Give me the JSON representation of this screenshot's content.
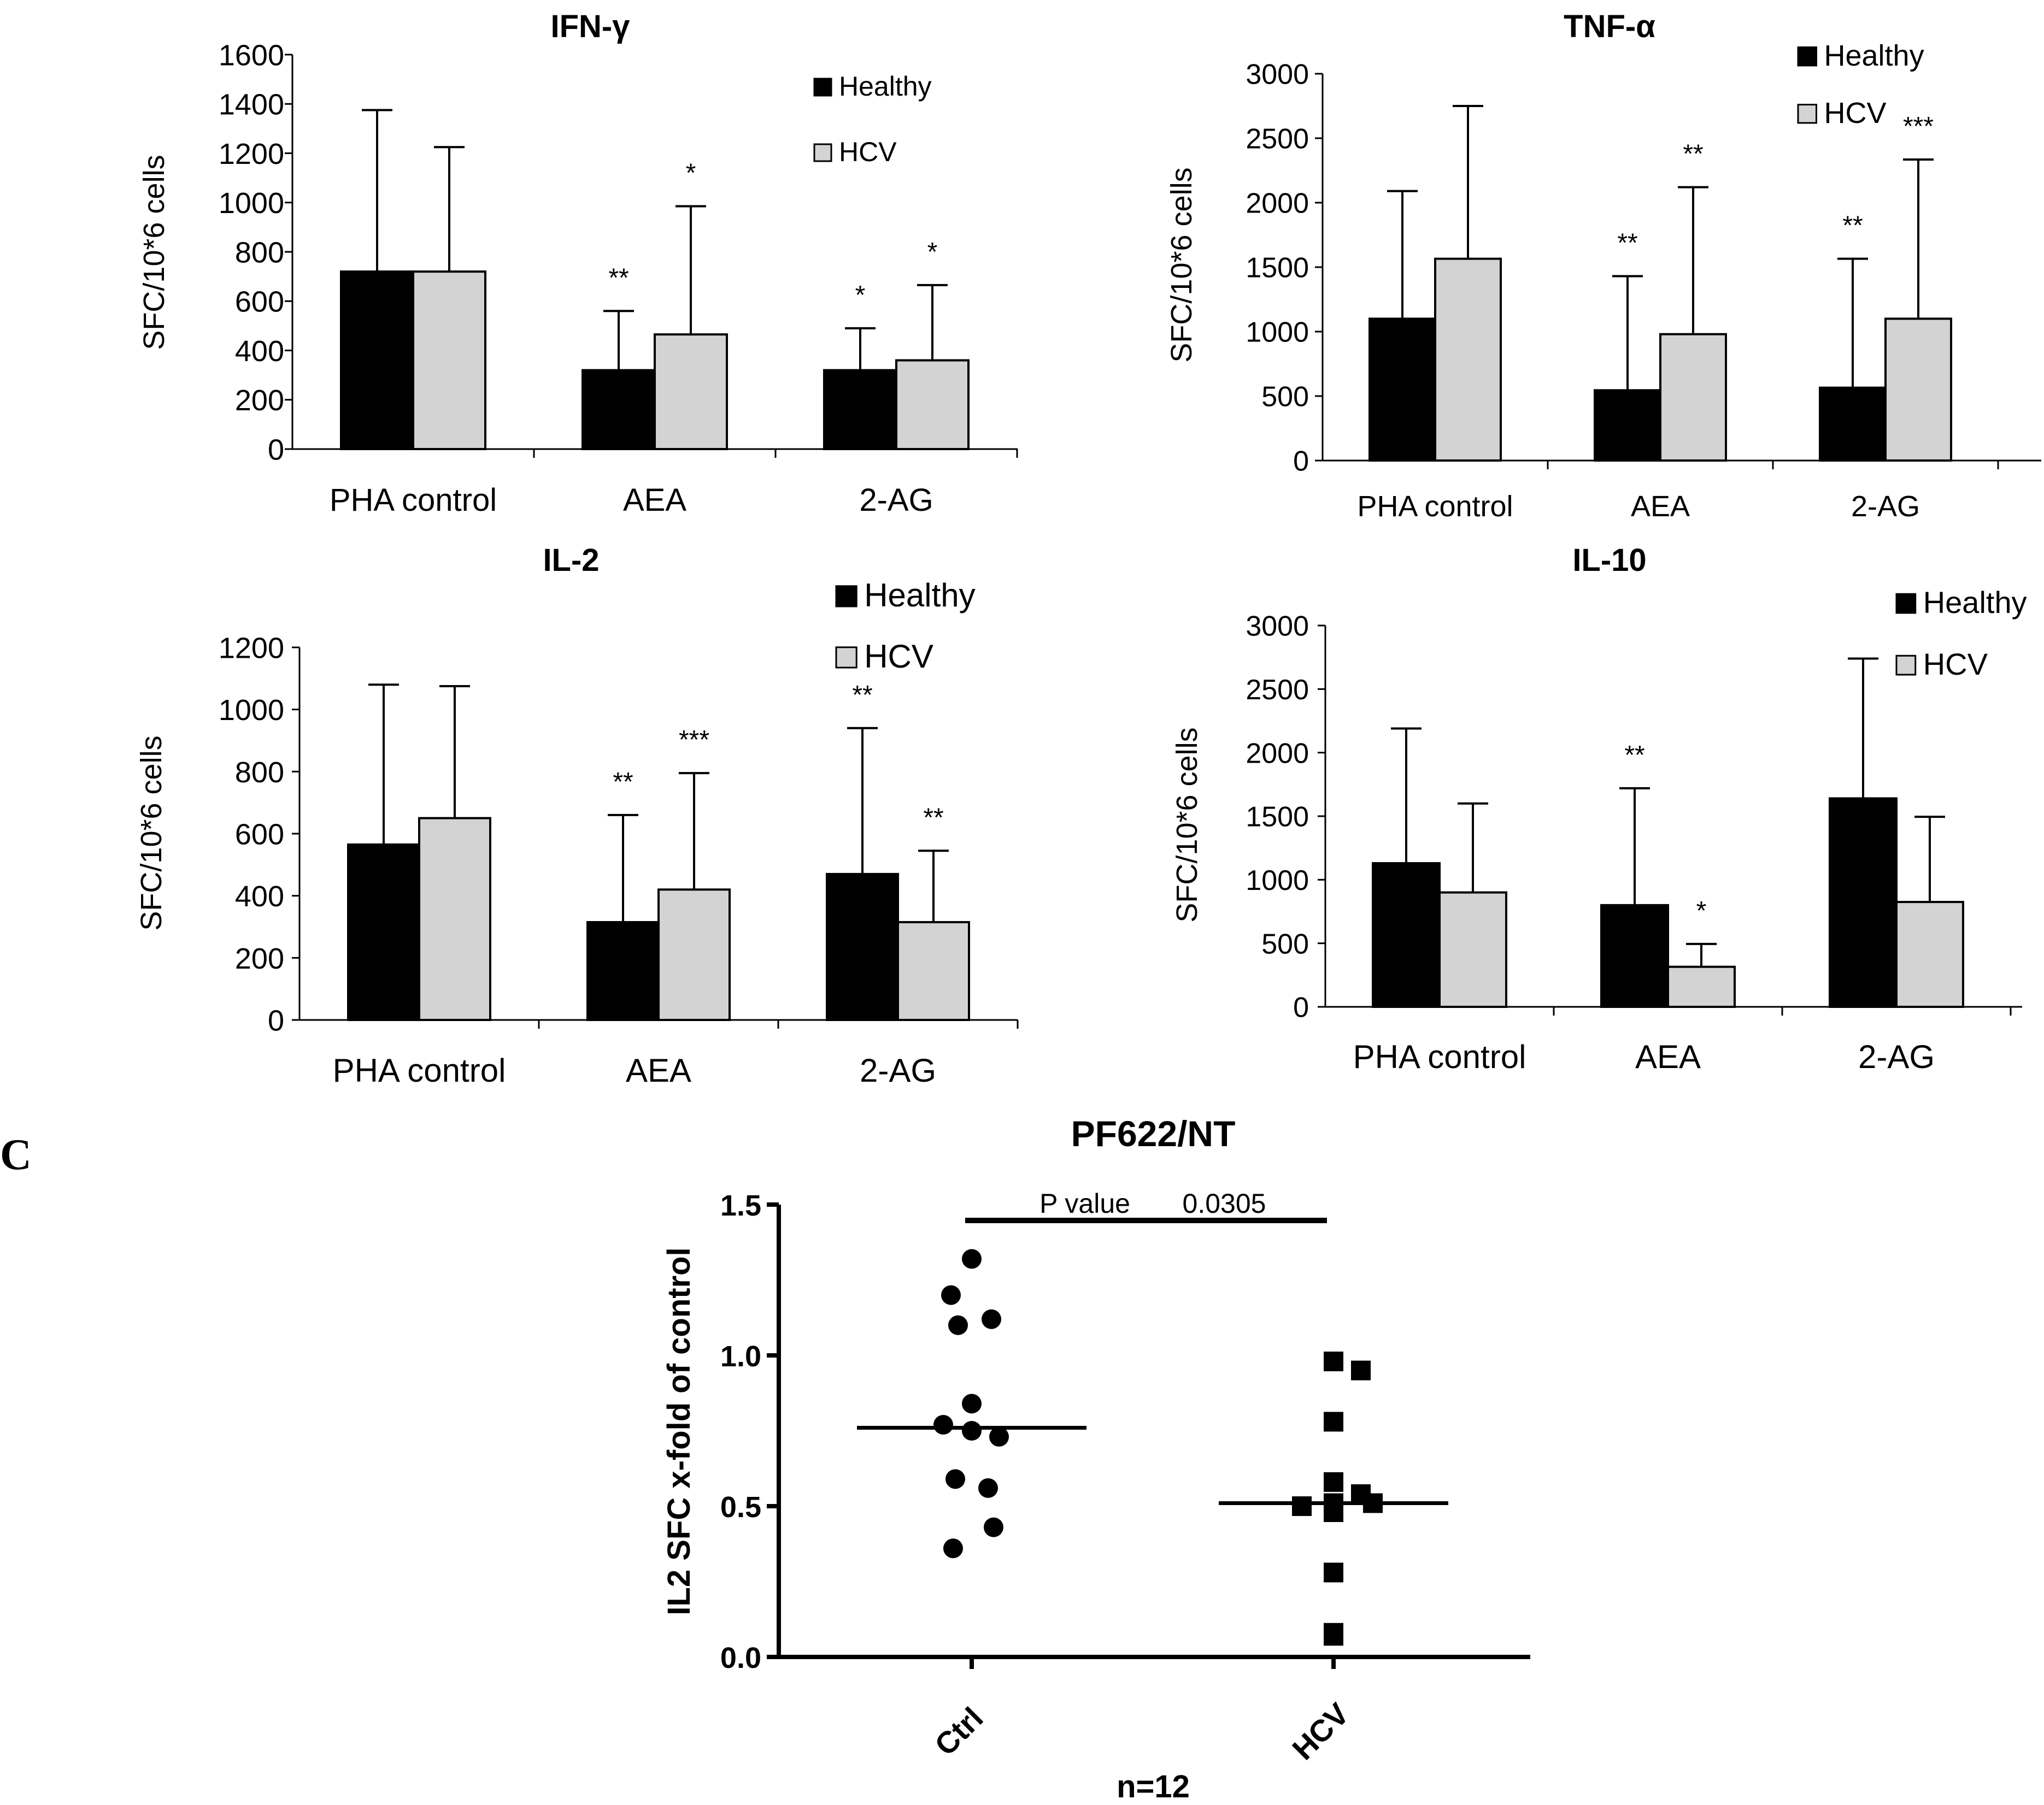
{
  "panel_labels": {
    "c": "C"
  },
  "colors": {
    "healthy": "#000000",
    "hcv": "#d3d3d3",
    "axis": "#000000",
    "background": "#ffffff"
  },
  "chart_data": [
    {
      "id": "ifng",
      "type": "bar",
      "title": "IFN-γ",
      "ylabel": "SFC/10*6 cells",
      "ylim": [
        0,
        1600
      ],
      "yticks": [
        0,
        200,
        400,
        600,
        800,
        1000,
        1200,
        1400,
        1600
      ],
      "categories": [
        "PHA control",
        "AEA",
        "2-AG"
      ],
      "legend": {
        "placement": "top-right",
        "entries": [
          "Healthy",
          "HCV"
        ]
      },
      "series": [
        {
          "name": "Healthy",
          "values": [
            720,
            320,
            320
          ],
          "errors": [
            655,
            240,
            170
          ],
          "annotations": [
            "",
            "**",
            "*"
          ]
        },
        {
          "name": "HCV",
          "values": [
            720,
            465,
            360
          ],
          "errors": [
            505,
            520,
            305
          ],
          "annotations": [
            "",
            "*",
            "*"
          ]
        }
      ]
    },
    {
      "id": "tnfa",
      "type": "bar",
      "title": "TNF-α",
      "ylabel": "SFC/10*6 cells",
      "ylim": [
        0,
        3000
      ],
      "yticks": [
        0,
        500,
        1000,
        1500,
        2000,
        2500,
        3000
      ],
      "categories": [
        "PHA control",
        "AEA",
        "2-AG"
      ],
      "legend": {
        "placement": "top-right",
        "entries": [
          "Healthy",
          "HCV"
        ]
      },
      "series": [
        {
          "name": "Healthy",
          "values": [
            1100,
            545,
            565
          ],
          "errors": [
            990,
            885,
            1000
          ],
          "annotations": [
            "",
            "**",
            "**"
          ]
        },
        {
          "name": "HCV",
          "values": [
            1565,
            980,
            1100
          ],
          "errors": [
            1185,
            1140,
            1235
          ],
          "annotations": [
            "",
            "**",
            "***"
          ]
        }
      ]
    },
    {
      "id": "il2",
      "type": "bar",
      "title": "IL-2",
      "ylabel": "SFC/10*6 cells",
      "ylim": [
        0,
        1200
      ],
      "yticks": [
        0,
        200,
        400,
        600,
        800,
        1000,
        1200
      ],
      "categories": [
        "PHA control",
        "AEA",
        "2-AG"
      ],
      "legend": {
        "placement": "top-right",
        "entries": [
          "Healthy",
          "HCV"
        ]
      },
      "series": [
        {
          "name": "Healthy",
          "values": [
            565,
            315,
            470
          ],
          "errors": [
            515,
            345,
            470
          ],
          "annotations": [
            "",
            "**",
            "**"
          ]
        },
        {
          "name": "HCV",
          "values": [
            650,
            420,
            315
          ],
          "errors": [
            425,
            375,
            230
          ],
          "annotations": [
            "",
            "***",
            "**"
          ]
        }
      ]
    },
    {
      "id": "il10",
      "type": "bar",
      "title": "IL-10",
      "ylabel": "SFC/10*6 cells",
      "ylim": [
        0,
        3000
      ],
      "yticks": [
        0,
        500,
        1000,
        1500,
        2000,
        2500,
        3000
      ],
      "categories": [
        "PHA control",
        "AEA",
        "2-AG"
      ],
      "legend": {
        "placement": "top-right",
        "entries": [
          "Healthy",
          "HCV"
        ]
      },
      "series": [
        {
          "name": "Healthy",
          "values": [
            1130,
            800,
            1640
          ],
          "errors": [
            1060,
            920,
            1100
          ],
          "annotations": [
            "",
            "**",
            ""
          ]
        },
        {
          "name": "HCV",
          "values": [
            900,
            315,
            825
          ],
          "errors": [
            700,
            180,
            670
          ],
          "annotations": [
            "",
            "*",
            ""
          ]
        }
      ]
    },
    {
      "id": "pf622",
      "type": "scatter",
      "title": "PF622/NT",
      "ylabel": "IL2 SFC x-fold of control",
      "xlabel": "n=12",
      "ylim": [
        0.0,
        1.5
      ],
      "yticks": [
        "0.0",
        "0.5",
        "1.0",
        "1.5"
      ],
      "categories": [
        "Ctrl",
        "HCV"
      ],
      "series": [
        {
          "name": "Ctrl",
          "marker": "circle",
          "values": [
            1.32,
            1.2,
            1.12,
            1.1,
            0.84,
            0.77,
            0.75,
            0.73,
            0.59,
            0.56,
            0.43,
            0.36
          ],
          "median": 0.76
        },
        {
          "name": "HCV",
          "marker": "square",
          "values": [
            0.98,
            0.95,
            0.78,
            0.58,
            0.54,
            0.51,
            0.5,
            0.51,
            0.48,
            0.28,
            0.08,
            0.07
          ],
          "median": 0.51
        }
      ],
      "significance": {
        "label": "P value",
        "value": "0.0305"
      }
    }
  ]
}
